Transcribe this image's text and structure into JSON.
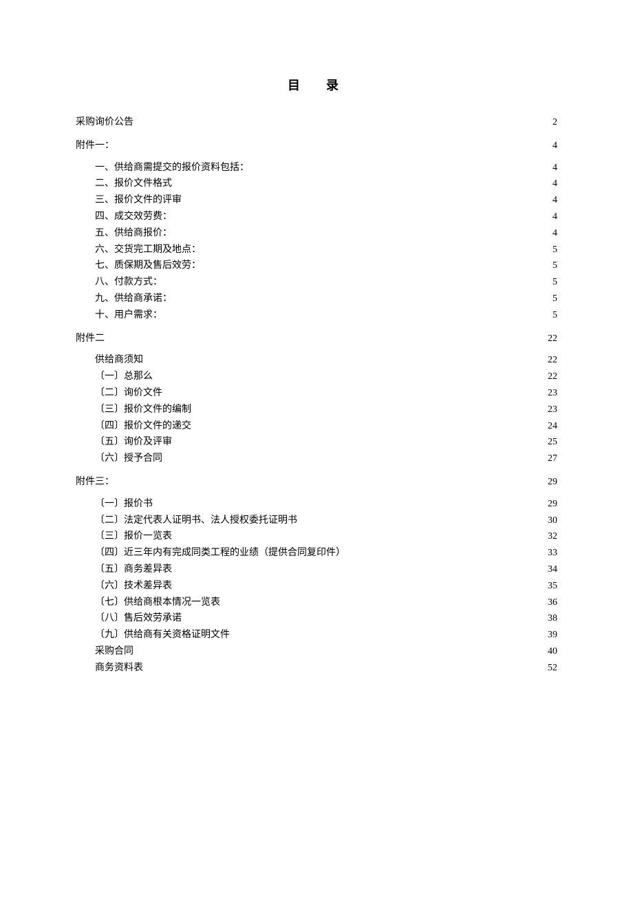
{
  "title": "目　录",
  "entries": [
    {
      "level": 0,
      "label": "采购询价公告",
      "page": "2"
    },
    {
      "level": 0,
      "label": "附件一：",
      "page": "4"
    },
    {
      "level": 1,
      "label": "一、供给商需提交的报价资料包括：",
      "page": "4"
    },
    {
      "level": 1,
      "label": "二、报价文件格式",
      "page": "4"
    },
    {
      "level": 1,
      "label": "三、报价文件的评审",
      "page": "4"
    },
    {
      "level": 1,
      "label": "四、成交效劳费：",
      "page": "4"
    },
    {
      "level": 1,
      "label": "五、供给商报价：",
      "page": "4"
    },
    {
      "level": 1,
      "label": "六、交货完工期及地点：",
      "page": "5"
    },
    {
      "level": 1,
      "label": "七、质保期及售后效劳：",
      "page": "5"
    },
    {
      "level": 1,
      "label": "八、付款方式：",
      "page": "5"
    },
    {
      "level": 1,
      "label": "九、供给商承诺：",
      "page": "5"
    },
    {
      "level": 1,
      "label": "十、用户需求：",
      "page": "5"
    },
    {
      "level": 0,
      "label": "附件二",
      "page": "22"
    },
    {
      "level": 1,
      "label": "供给商须知",
      "page": "22"
    },
    {
      "level": 2,
      "label": "〔一〕总那么",
      "page": "22"
    },
    {
      "level": 2,
      "label": "〔二〕询价文件",
      "page": "23"
    },
    {
      "level": 2,
      "label": "〔三〕报价文件的编制",
      "page": "23"
    },
    {
      "level": 2,
      "label": "〔四〕报价文件的递交",
      "page": "24"
    },
    {
      "level": 2,
      "label": "〔五〕询价及评审",
      "page": "25"
    },
    {
      "level": 2,
      "label": "〔六〕授予合同",
      "page": "27"
    },
    {
      "level": 0,
      "label": "附件三：",
      "page": "29"
    },
    {
      "level": 2,
      "label": "〔一〕报价书",
      "page": "29"
    },
    {
      "level": 2,
      "label": "〔二〕法定代表人证明书、法人授权委托证明书",
      "page": "30"
    },
    {
      "level": 2,
      "label": "〔三〕报价一览表",
      "page": "32"
    },
    {
      "level": 2,
      "label": "〔四〕近三年内有完成同类工程的业绩（提供合同复印件）",
      "page": "33"
    },
    {
      "level": 2,
      "label": "〔五〕商务差异表",
      "page": "34"
    },
    {
      "level": 2,
      "label": "〔六〕技术差异表",
      "page": "35"
    },
    {
      "level": 2,
      "label": "〔七〕供给商根本情况一览表",
      "page": "36"
    },
    {
      "level": 2,
      "label": "〔八〕售后效劳承诺",
      "page": "38"
    },
    {
      "level": 2,
      "label": "〔九〕供给商有关资格证明文件",
      "page": "39"
    },
    {
      "level": 1,
      "label": "采购合同",
      "page": "40"
    },
    {
      "level": 1,
      "label": "商务资料表",
      "page": "52"
    }
  ]
}
